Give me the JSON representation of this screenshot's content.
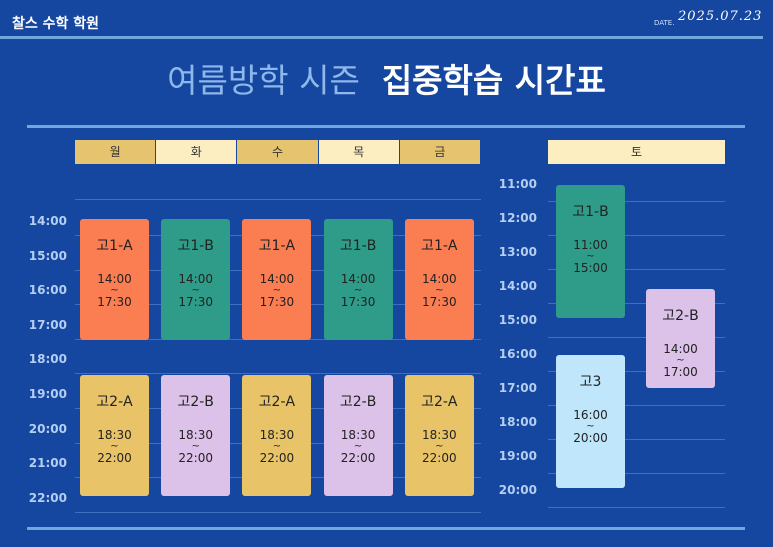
{
  "header": {
    "academy": "찰스 수학 학원",
    "date_label": "DATE.",
    "date": "2025.07.23"
  },
  "title": {
    "light": "여름방학 시즌",
    "bold": "집중학습 시간표"
  },
  "separator": "~",
  "weekday": {
    "days": [
      "월",
      "화",
      "수",
      "목",
      "금"
    ],
    "times": [
      "14:00",
      "15:00",
      "16:00",
      "17:00",
      "18:00",
      "19:00",
      "20:00",
      "21:00",
      "22:00"
    ],
    "columns": [
      [
        {
          "class": "고1-A",
          "start": "14:00",
          "end": "17:30"
        },
        {
          "class": "고2-A",
          "start": "18:30",
          "end": "22:00"
        }
      ],
      [
        {
          "class": "고1-B",
          "start": "14:00",
          "end": "17:30"
        },
        {
          "class": "고2-B",
          "start": "18:30",
          "end": "22:00"
        }
      ],
      [
        {
          "class": "고1-A",
          "start": "14:00",
          "end": "17:30"
        },
        {
          "class": "고2-A",
          "start": "18:30",
          "end": "22:00"
        }
      ],
      [
        {
          "class": "고1-B",
          "start": "14:00",
          "end": "17:30"
        },
        {
          "class": "고2-B",
          "start": "18:30",
          "end": "22:00"
        }
      ],
      [
        {
          "class": "고1-A",
          "start": "14:00",
          "end": "17:30"
        },
        {
          "class": "고2-A",
          "start": "18:30",
          "end": "22:00"
        }
      ]
    ]
  },
  "saturday": {
    "day": "토",
    "times": [
      "11:00",
      "12:00",
      "13:00",
      "14:00",
      "15:00",
      "16:00",
      "17:00",
      "18:00",
      "19:00",
      "20:00"
    ],
    "blocks": [
      {
        "class": "고1-B",
        "start": "11:00",
        "end": "15:00"
      },
      {
        "class": "고2-B",
        "start": "14:00",
        "end": "17:00"
      },
      {
        "class": "고3",
        "start": "16:00",
        "end": "20:00"
      }
    ]
  }
}
